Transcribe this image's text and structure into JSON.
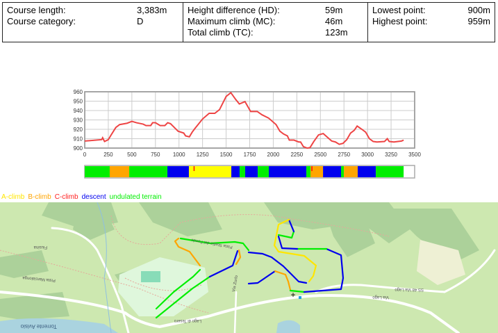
{
  "stats": {
    "col1": [
      {
        "label": "Course length:",
        "value": "3,383m"
      },
      {
        "label": "Course category:",
        "value": "D"
      }
    ],
    "col2": [
      {
        "label": "Height difference (HD):",
        "value": "59m"
      },
      {
        "label": "Maximum climb (MC):",
        "value": "46m"
      },
      {
        "label": "Total climb (TC):",
        "value": "123m"
      }
    ],
    "col3": [
      {
        "label": "Lowest point:",
        "value": "900m"
      },
      {
        "label": "Highest point:",
        "value": "959m"
      }
    ]
  },
  "legend": [
    {
      "label": "A-climb",
      "color": "#ffe600"
    },
    {
      "label": "B-climb",
      "color": "#ffa500"
    },
    {
      "label": "C-climb",
      "color": "#ff2020"
    },
    {
      "label": "descent",
      "color": "#0000ee"
    },
    {
      "label": "undulated terrain",
      "color": "#00ee00"
    }
  ],
  "chart_data": {
    "type": "line",
    "title": "",
    "xlabel": "",
    "ylabel": "",
    "xlim": [
      0,
      3500
    ],
    "ylim": [
      900,
      960
    ],
    "x_ticks": [
      "0",
      "250",
      "500",
      "750",
      "1000",
      "1250",
      "1500",
      "1750",
      "2000",
      "2250",
      "2500",
      "2750",
      "3000",
      "3250",
      "3500"
    ],
    "y_ticks": [
      "900",
      "910",
      "920",
      "930",
      "940",
      "950",
      "960"
    ],
    "grid": true,
    "line_color": "#ee4444",
    "series": [
      {
        "name": "elevation",
        "x": [
          0,
          180,
          190,
          210,
          250,
          280,
          330,
          370,
          450,
          500,
          550,
          620,
          650,
          700,
          720,
          750,
          800,
          850,
          880,
          910,
          950,
          990,
          1050,
          1070,
          1110,
          1140,
          1170,
          1250,
          1320,
          1380,
          1430,
          1500,
          1550,
          1600,
          1640,
          1700,
          1760,
          1830,
          1880,
          1950,
          2030,
          2070,
          2110,
          2150,
          2170,
          2220,
          2270,
          2290,
          2320,
          2360,
          2390,
          2430,
          2480,
          2530,
          2580,
          2620,
          2660,
          2700,
          2740,
          2780,
          2820,
          2860,
          2890,
          2940,
          2980,
          3020,
          3060,
          3100,
          3180,
          3210,
          3230,
          3280,
          3360,
          3383
        ],
        "y": [
          907.5,
          909,
          911,
          907,
          909,
          914,
          922,
          925,
          926.5,
          928.5,
          927,
          925.5,
          924,
          924,
          927,
          927,
          924,
          924,
          927,
          926,
          922,
          918,
          916,
          913,
          912,
          917,
          921,
          931,
          937,
          937,
          941,
          955,
          959,
          952,
          947,
          949.5,
          939,
          939,
          935.5,
          932,
          925,
          918,
          915,
          913,
          908.5,
          908.5,
          906.5,
          906.5,
          901.5,
          900,
          900.5,
          907,
          914,
          915.5,
          911,
          907.5,
          906.5,
          904,
          905,
          909,
          916,
          919,
          923.5,
          920,
          917,
          910,
          907,
          906.5,
          907,
          910,
          907,
          906.5,
          907.5,
          908.5
        ]
      }
    ],
    "segments": [
      {
        "type": "undulated",
        "from": 0,
        "to": 265
      },
      {
        "type": "B-climb",
        "from": 265,
        "to": 472
      },
      {
        "type": "undulated",
        "from": 472,
        "to": 877
      },
      {
        "type": "descent",
        "from": 877,
        "to": 1105
      },
      {
        "type": "A-climb",
        "from": 1105,
        "to": 1555
      },
      {
        "type": "descent",
        "from": 1555,
        "to": 1643
      },
      {
        "type": "undulated",
        "from": 1643,
        "to": 1702
      },
      {
        "type": "descent",
        "from": 1702,
        "to": 1835
      },
      {
        "type": "undulated",
        "from": 1835,
        "to": 1953
      },
      {
        "type": "descent",
        "from": 1953,
        "to": 2351
      },
      {
        "type": "undulated",
        "from": 2351,
        "to": 2395
      },
      {
        "type": "B-climb",
        "from": 2395,
        "to": 2528
      },
      {
        "type": "descent",
        "from": 2528,
        "to": 2719
      },
      {
        "type": "undulated",
        "from": 2719,
        "to": 2749
      },
      {
        "type": "B-climb",
        "from": 2749,
        "to": 2896
      },
      {
        "type": "descent",
        "from": 2896,
        "to": 3088
      },
      {
        "type": "undulated",
        "from": 3088,
        "to": 3383
      }
    ],
    "c_climb_marks": [
      1160,
      2410
    ],
    "segment_colors": {
      "A-climb": "#ffff00",
      "B-climb": "#ffa500",
      "C-climb": "#ff0000",
      "descent": "#0000ee",
      "undulated": "#00ee00"
    }
  },
  "map": {
    "labels": [
      "Via Lago",
      "SS 48 Via Lago",
      "Lago di Tesero",
      "Pista Stadio del Fondo",
      "Pista Marcialonga",
      "Torrente Avisio",
      "Fiusina",
      "Via Zurlo"
    ]
  }
}
